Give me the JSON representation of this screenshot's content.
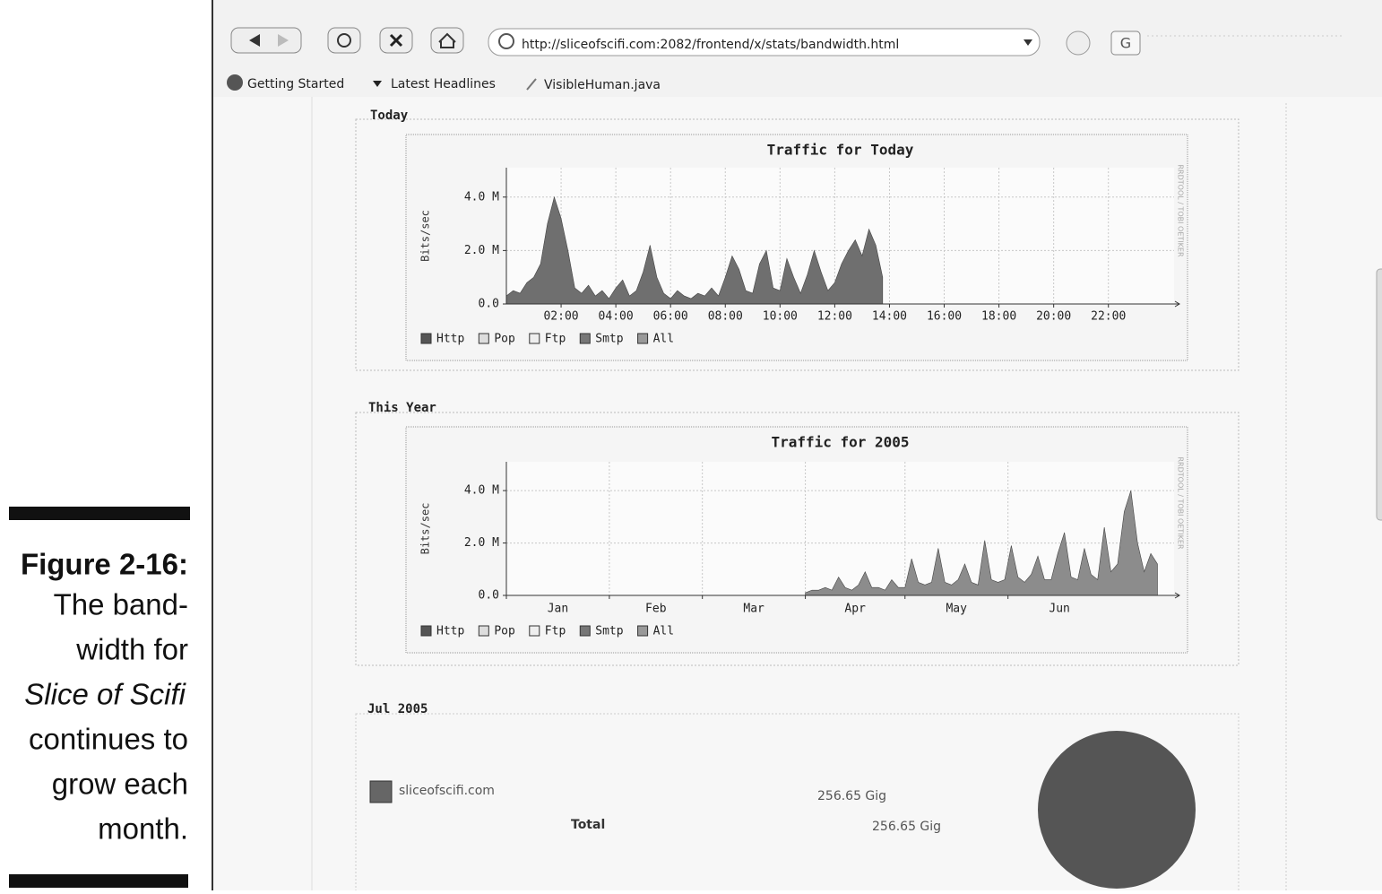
{
  "browser": {
    "url": "http://sliceofscifi.com:2082/frontend/x/stats/bandwidth.html",
    "bookmarks": [
      "Getting Started",
      "Latest Headlines",
      "VisibleHuman.java"
    ]
  },
  "figure": {
    "label": "Figure 2-16:",
    "lines": [
      "The band-",
      "width for",
      "Slice of Scifi",
      "continues to",
      "grow each",
      "month."
    ]
  },
  "sections": [
    "Today",
    "This Year",
    "Jul 2005"
  ],
  "chart_data": [
    {
      "type": "area",
      "title": "Traffic for Today",
      "y_label": "Bits/sec",
      "watermark": "RRDTOOL / TOBI OETIKER",
      "color": "#6f6f6f",
      "grid": true,
      "x": [
        0,
        0.25,
        0.5,
        0.75,
        1,
        1.25,
        1.5,
        1.75,
        2,
        2.25,
        2.5,
        2.75,
        3,
        3.25,
        3.5,
        3.75,
        4,
        4.25,
        4.5,
        4.75,
        5,
        5.25,
        5.5,
        5.75,
        6,
        6.25,
        6.5,
        6.75,
        7,
        7.25,
        7.5,
        7.75,
        8,
        8.25,
        8.5,
        8.75,
        9,
        9.25,
        9.5,
        9.75,
        10,
        10.25,
        10.5,
        10.75,
        11,
        11.25,
        11.5,
        11.75,
        12,
        12.25,
        12.5,
        12.75,
        13,
        13.25,
        13.5,
        13.75
      ],
      "values": [
        300000,
        500000,
        400000,
        800000,
        1000000,
        1500000,
        3000000,
        4000000,
        3200000,
        2000000,
        600000,
        400000,
        700000,
        300000,
        500000,
        200000,
        600000,
        900000,
        300000,
        500000,
        1200000,
        2200000,
        1000000,
        400000,
        200000,
        500000,
        300000,
        200000,
        400000,
        300000,
        600000,
        300000,
        1000000,
        1800000,
        1300000,
        500000,
        400000,
        1500000,
        2000000,
        600000,
        500000,
        1700000,
        1000000,
        400000,
        1100000,
        2000000,
        1200000,
        500000,
        800000,
        1500000,
        2000000,
        2400000,
        1800000,
        2800000,
        2200000,
        1000000
      ],
      "xlim": [
        0,
        24.4
      ],
      "ylim": [
        0,
        5100000
      ],
      "xticks": [
        {
          "value": 2,
          "label": "02:00"
        },
        {
          "value": 4,
          "label": "04:00"
        },
        {
          "value": 6,
          "label": "06:00"
        },
        {
          "value": 8,
          "label": "08:00"
        },
        {
          "value": 10,
          "label": "10:00"
        },
        {
          "value": 12,
          "label": "12:00"
        },
        {
          "value": 14,
          "label": "14:00"
        },
        {
          "value": 16,
          "label": "16:00"
        },
        {
          "value": 18,
          "label": "18:00"
        },
        {
          "value": 20,
          "label": "20:00"
        },
        {
          "value": 22,
          "label": "22:00"
        }
      ],
      "yticks": [
        {
          "value": 0,
          "label": "0.0"
        },
        {
          "value": 2000000,
          "label": "2.0 M"
        },
        {
          "value": 4000000,
          "label": "4.0 M"
        }
      ],
      "legend": [
        {
          "name": "Http",
          "color": "#555555"
        },
        {
          "name": "Pop",
          "color": "#dddddd"
        },
        {
          "name": "Ftp",
          "color": "#eeeeee"
        },
        {
          "name": "Smtp",
          "color": "#777777"
        },
        {
          "name": "All",
          "color": "#999999"
        }
      ]
    },
    {
      "type": "area",
      "title": "Traffic for 2005",
      "y_label": "Bits/sec",
      "watermark": "RRDTOOL / TOBI OETIKER",
      "color": "#8c8c8c",
      "grid": true,
      "x": [
        90,
        92,
        94,
        96,
        98,
        100,
        102,
        104,
        106,
        108,
        110,
        112,
        114,
        116,
        118,
        120,
        122,
        124,
        126,
        128,
        130,
        132,
        134,
        136,
        138,
        140,
        142,
        144,
        146,
        148,
        150,
        152,
        154,
        156,
        158,
        160,
        162,
        164,
        166,
        168,
        170,
        172,
        174,
        176,
        178,
        180,
        182,
        184,
        186,
        188,
        190,
        192,
        194,
        196
      ],
      "values": [
        100000,
        200000,
        200000,
        300000,
        200000,
        700000,
        300000,
        200000,
        400000,
        900000,
        300000,
        300000,
        200000,
        600000,
        300000,
        300000,
        1400000,
        500000,
        400000,
        500000,
        1800000,
        500000,
        400000,
        600000,
        1200000,
        500000,
        400000,
        2100000,
        600000,
        500000,
        600000,
        1900000,
        700000,
        500000,
        800000,
        1500000,
        600000,
        600000,
        1600000,
        2400000,
        700000,
        600000,
        1800000,
        800000,
        600000,
        2600000,
        900000,
        1200000,
        3200000,
        4000000,
        2000000,
        900000,
        1600000,
        1200000
      ],
      "xlim": [
        0,
        201
      ],
      "ylim": [
        0,
        5100000
      ],
      "xticks": [
        {
          "value": 0,
          "label": "Jan"
        },
        {
          "value": 31,
          "label": "Feb"
        },
        {
          "value": 59,
          "label": "Mar"
        },
        {
          "value": 90,
          "label": "Apr"
        },
        {
          "value": 120,
          "label": "May"
        },
        {
          "value": 151,
          "label": "Jun"
        }
      ],
      "yticks": [
        {
          "value": 0,
          "label": "0.0"
        },
        {
          "value": 2000000,
          "label": "2.0 M"
        },
        {
          "value": 4000000,
          "label": "4.0 M"
        }
      ],
      "legend": [
        {
          "name": "Http",
          "color": "#555555"
        },
        {
          "name": "Pop",
          "color": "#dddddd"
        },
        {
          "name": "Ftp",
          "color": "#eeeeee"
        },
        {
          "name": "Smtp",
          "color": "#777777"
        },
        {
          "name": "All",
          "color": "#999999"
        }
      ]
    }
  ],
  "summary": {
    "domain": "sliceofscifi.com",
    "domain_value": "256.65 Gig",
    "total_label": "Total",
    "total_value": "256.65 Gig"
  }
}
